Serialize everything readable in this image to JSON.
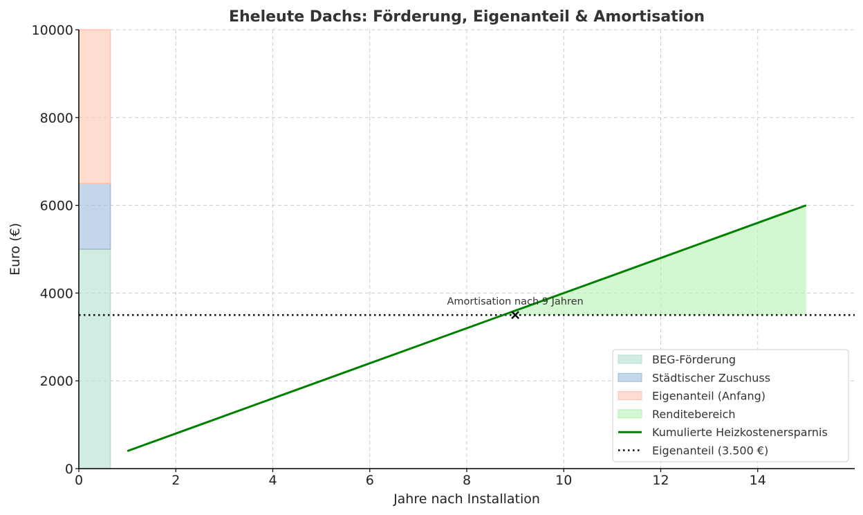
{
  "chart_data": {
    "type": "line",
    "title": "Eheleute Dachs: Förderung, Eigenanteil & Amortisation",
    "xlabel": "Jahre nach Installation",
    "ylabel": "Euro (€)",
    "xlim": [
      0,
      16
    ],
    "ylim": [
      0,
      10000
    ],
    "x_ticks": [
      0,
      2,
      4,
      6,
      8,
      10,
      12,
      14
    ],
    "y_ticks": [
      0,
      2000,
      4000,
      6000,
      8000,
      10000
    ],
    "grid": true,
    "legend_position": "lower-right",
    "stacked_bar": {
      "x_range": [
        0,
        0.65
      ],
      "segments": [
        {
          "name": "BEG-Förderung",
          "from": 0,
          "to": 5000,
          "color": "#b3e0cd"
        },
        {
          "name": "Städtischer Zuschuss",
          "from": 5000,
          "to": 6500,
          "color": "#9dbcdc"
        },
        {
          "name": "Eigenanteil (Anfang)",
          "from": 6500,
          "to": 10000,
          "color": "#ffc4b0"
        }
      ]
    },
    "series": [
      {
        "name": "Kumulierte Heizkostenersparnis",
        "color": "#008000",
        "x": [
          1,
          2,
          3,
          4,
          5,
          6,
          7,
          8,
          9,
          10,
          11,
          12,
          13,
          14,
          15
        ],
        "values": [
          400,
          800,
          1200,
          1600,
          2000,
          2400,
          2800,
          3200,
          3600,
          4000,
          4400,
          4800,
          5200,
          5600,
          6000
        ]
      }
    ],
    "reference_line": {
      "name": "Eigenanteil (3.500 €)",
      "value": 3500,
      "color": "#000000",
      "style": "dotted"
    },
    "fill_region": {
      "name": "Renditebereich",
      "baseline": 3500,
      "x_from": 8.75,
      "x_to": 15,
      "color": "#b5f2b0"
    },
    "marker": {
      "x": 9,
      "y": 3500,
      "symbol": "x"
    },
    "annotation": {
      "text": "Amortisation nach 9 Jahren",
      "x": 9,
      "y": 3800
    }
  }
}
